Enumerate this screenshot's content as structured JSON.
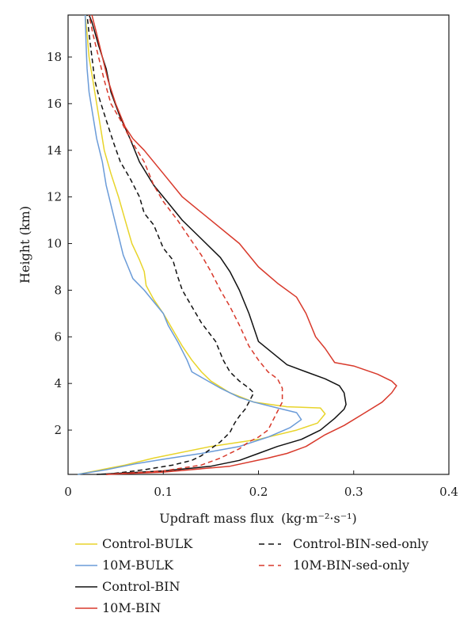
{
  "chart_data": {
    "type": "line",
    "title": "",
    "xlabel": "Updraft mass flux",
    "xlabel_unit": "(kg·m⁻²·s⁻¹)",
    "ylabel": "Height (km)",
    "xlim": [
      0,
      0.4
    ],
    "ylim": [
      0.1,
      19.8
    ],
    "x_ticks": [
      0,
      0.1,
      0.2,
      0.3,
      0.4
    ],
    "x_tick_labels": [
      "0",
      "0.1",
      "0.2",
      "0.3",
      "0.4"
    ],
    "y_ticks": [
      2,
      4,
      6,
      8,
      10,
      12,
      14,
      16,
      18
    ],
    "y_tick_labels": [
      "2",
      "4",
      "6",
      "8",
      "10",
      "12",
      "14",
      "16",
      "18"
    ],
    "grid": false,
    "legend_position": "below",
    "series": [
      {
        "name": "Control-BULK",
        "color": "#e8d42a",
        "dash": "solid",
        "points": [
          [
            0.01,
            0.1
          ],
          [
            0.06,
            0.5
          ],
          [
            0.09,
            0.8
          ],
          [
            0.15,
            1.3
          ],
          [
            0.2,
            1.6
          ],
          [
            0.24,
            2.0
          ],
          [
            0.262,
            2.3
          ],
          [
            0.27,
            2.7
          ],
          [
            0.265,
            2.95
          ],
          [
            0.23,
            3.0
          ],
          [
            0.195,
            3.2
          ],
          [
            0.17,
            3.6
          ],
          [
            0.15,
            4.1
          ],
          [
            0.14,
            4.5
          ],
          [
            0.13,
            5.0
          ],
          [
            0.12,
            5.6
          ],
          [
            0.11,
            6.3
          ],
          [
            0.1,
            7.0
          ],
          [
            0.09,
            7.6
          ],
          [
            0.082,
            8.2
          ],
          [
            0.08,
            8.8
          ],
          [
            0.075,
            9.3
          ],
          [
            0.067,
            10.0
          ],
          [
            0.06,
            11.0
          ],
          [
            0.053,
            12.0
          ],
          [
            0.045,
            13.0
          ],
          [
            0.038,
            14.0
          ],
          [
            0.034,
            15.0
          ],
          [
            0.03,
            16.0
          ],
          [
            0.026,
            17.0
          ],
          [
            0.022,
            18.0
          ],
          [
            0.02,
            19.0
          ],
          [
            0.018,
            19.8
          ]
        ]
      },
      {
        "name": "10M-BULK",
        "color": "#6a9bd8",
        "dash": "solid",
        "points": [
          [
            0.01,
            0.1
          ],
          [
            0.04,
            0.3
          ],
          [
            0.07,
            0.55
          ],
          [
            0.1,
            0.75
          ],
          [
            0.14,
            1.0
          ],
          [
            0.18,
            1.3
          ],
          [
            0.21,
            1.7
          ],
          [
            0.233,
            2.1
          ],
          [
            0.245,
            2.45
          ],
          [
            0.24,
            2.75
          ],
          [
            0.22,
            2.95
          ],
          [
            0.195,
            3.2
          ],
          [
            0.18,
            3.4
          ],
          [
            0.16,
            3.8
          ],
          [
            0.13,
            4.5
          ],
          [
            0.125,
            5.0
          ],
          [
            0.115,
            5.8
          ],
          [
            0.105,
            6.5
          ],
          [
            0.1,
            7.0
          ],
          [
            0.09,
            7.5
          ],
          [
            0.08,
            8.0
          ],
          [
            0.068,
            8.5
          ],
          [
            0.063,
            9.0
          ],
          [
            0.058,
            9.5
          ],
          [
            0.052,
            10.5
          ],
          [
            0.046,
            11.5
          ],
          [
            0.04,
            12.5
          ],
          [
            0.036,
            13.5
          ],
          [
            0.03,
            14.5
          ],
          [
            0.026,
            15.5
          ],
          [
            0.022,
            16.5
          ],
          [
            0.02,
            17.5
          ],
          [
            0.019,
            18.5
          ],
          [
            0.018,
            19.8
          ]
        ]
      },
      {
        "name": "Control-BIN",
        "color": "#111111",
        "dash": "solid",
        "points": [
          [
            0.03,
            0.1
          ],
          [
            0.1,
            0.25
          ],
          [
            0.15,
            0.45
          ],
          [
            0.18,
            0.7
          ],
          [
            0.2,
            1.0
          ],
          [
            0.22,
            1.3
          ],
          [
            0.245,
            1.6
          ],
          [
            0.265,
            2.0
          ],
          [
            0.28,
            2.5
          ],
          [
            0.29,
            2.9
          ],
          [
            0.292,
            3.1
          ],
          [
            0.29,
            3.6
          ],
          [
            0.285,
            3.9
          ],
          [
            0.27,
            4.2
          ],
          [
            0.25,
            4.5
          ],
          [
            0.23,
            4.8
          ],
          [
            0.2,
            5.8
          ],
          [
            0.19,
            7.0
          ],
          [
            0.18,
            8.0
          ],
          [
            0.17,
            8.8
          ],
          [
            0.16,
            9.4
          ],
          [
            0.14,
            10.2
          ],
          [
            0.12,
            11.0
          ],
          [
            0.1,
            12.0
          ],
          [
            0.09,
            12.5
          ],
          [
            0.075,
            13.5
          ],
          [
            0.065,
            14.5
          ],
          [
            0.054,
            15.5
          ],
          [
            0.045,
            16.5
          ],
          [
            0.04,
            17.5
          ],
          [
            0.032,
            18.5
          ],
          [
            0.025,
            19.5
          ],
          [
            0.022,
            19.8
          ]
        ]
      },
      {
        "name": "10M-BIN",
        "color": "#d8392b",
        "dash": "solid",
        "points": [
          [
            0.04,
            0.1
          ],
          [
            0.1,
            0.2
          ],
          [
            0.17,
            0.45
          ],
          [
            0.21,
            0.8
          ],
          [
            0.23,
            1.0
          ],
          [
            0.25,
            1.3
          ],
          [
            0.27,
            1.8
          ],
          [
            0.29,
            2.2
          ],
          [
            0.31,
            2.7
          ],
          [
            0.33,
            3.2
          ],
          [
            0.34,
            3.6
          ],
          [
            0.345,
            3.9
          ],
          [
            0.34,
            4.1
          ],
          [
            0.325,
            4.4
          ],
          [
            0.3,
            4.75
          ],
          [
            0.28,
            4.9
          ],
          [
            0.27,
            5.5
          ],
          [
            0.26,
            6.0
          ],
          [
            0.25,
            7.0
          ],
          [
            0.24,
            7.7
          ],
          [
            0.22,
            8.3
          ],
          [
            0.2,
            9.0
          ],
          [
            0.18,
            10.0
          ],
          [
            0.15,
            11.0
          ],
          [
            0.12,
            12.0
          ],
          [
            0.1,
            13.0
          ],
          [
            0.08,
            14.0
          ],
          [
            0.068,
            14.5
          ],
          [
            0.06,
            15.0
          ],
          [
            0.05,
            16.0
          ],
          [
            0.042,
            17.0
          ],
          [
            0.036,
            18.0
          ],
          [
            0.03,
            19.0
          ],
          [
            0.025,
            19.8
          ]
        ]
      },
      {
        "name": "Control-BIN-sed-only",
        "color": "#111111",
        "dash": "dashed",
        "points": [
          [
            0.04,
            0.1
          ],
          [
            0.08,
            0.3
          ],
          [
            0.11,
            0.5
          ],
          [
            0.13,
            0.7
          ],
          [
            0.14,
            0.9
          ],
          [
            0.15,
            1.2
          ],
          [
            0.16,
            1.5
          ],
          [
            0.17,
            1.9
          ],
          [
            0.175,
            2.3
          ],
          [
            0.18,
            2.6
          ],
          [
            0.186,
            2.9
          ],
          [
            0.19,
            3.2
          ],
          [
            0.195,
            3.6
          ],
          [
            0.19,
            3.8
          ],
          [
            0.18,
            4.1
          ],
          [
            0.17,
            4.5
          ],
          [
            0.163,
            5.0
          ],
          [
            0.155,
            5.8
          ],
          [
            0.14,
            6.6
          ],
          [
            0.13,
            7.3
          ],
          [
            0.12,
            8.0
          ],
          [
            0.115,
            8.6
          ],
          [
            0.11,
            9.3
          ],
          [
            0.1,
            9.8
          ],
          [
            0.09,
            10.8
          ],
          [
            0.08,
            11.3
          ],
          [
            0.075,
            12.0
          ],
          [
            0.065,
            12.8
          ],
          [
            0.055,
            13.5
          ],
          [
            0.048,
            14.3
          ],
          [
            0.04,
            15.3
          ],
          [
            0.033,
            16.2
          ],
          [
            0.028,
            17.0
          ],
          [
            0.025,
            18.0
          ],
          [
            0.022,
            19.0
          ],
          [
            0.02,
            19.8
          ]
        ]
      },
      {
        "name": "10M-BIN-sed-only",
        "color": "#d8392b",
        "dash": "dashed",
        "points": [
          [
            0.04,
            0.1
          ],
          [
            0.1,
            0.25
          ],
          [
            0.14,
            0.5
          ],
          [
            0.16,
            0.8
          ],
          [
            0.18,
            1.2
          ],
          [
            0.19,
            1.5
          ],
          [
            0.2,
            1.7
          ],
          [
            0.21,
            2.0
          ],
          [
            0.215,
            2.4
          ],
          [
            0.22,
            2.8
          ],
          [
            0.225,
            3.2
          ],
          [
            0.225,
            3.8
          ],
          [
            0.22,
            4.2
          ],
          [
            0.21,
            4.5
          ],
          [
            0.2,
            5.0
          ],
          [
            0.19,
            5.6
          ],
          [
            0.18,
            6.5
          ],
          [
            0.17,
            7.3
          ],
          [
            0.16,
            8.0
          ],
          [
            0.15,
            8.8
          ],
          [
            0.14,
            9.5
          ],
          [
            0.13,
            10.1
          ],
          [
            0.115,
            11.0
          ],
          [
            0.1,
            11.8
          ],
          [
            0.09,
            12.5
          ],
          [
            0.08,
            13.5
          ],
          [
            0.065,
            14.5
          ],
          [
            0.055,
            15.3
          ],
          [
            0.045,
            16.0
          ],
          [
            0.038,
            17.0
          ],
          [
            0.032,
            18.0
          ],
          [
            0.026,
            19.0
          ],
          [
            0.022,
            19.8
          ]
        ]
      }
    ]
  }
}
